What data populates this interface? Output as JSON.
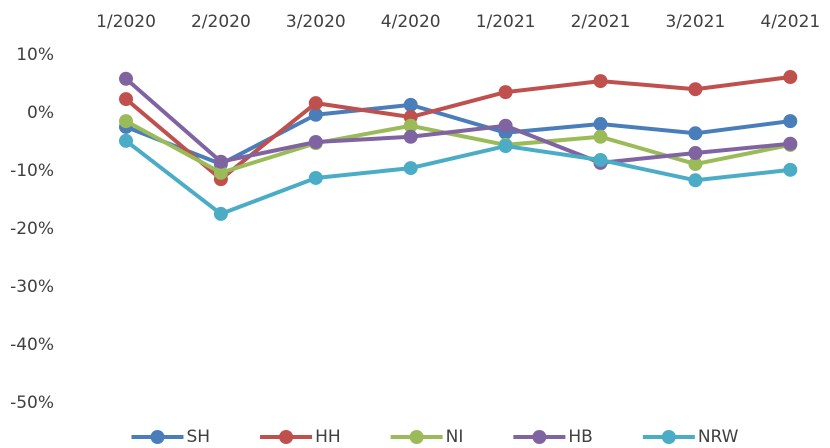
{
  "chart_data": {
    "type": "line",
    "categories": [
      "1/2020",
      "2/2020",
      "3/2020",
      "4/2020",
      "1/2021",
      "2/2021",
      "3/2021",
      "4/2021"
    ],
    "series": [
      {
        "name": "SH",
        "color": "#4a7ebb",
        "values": [
          -2.4,
          -8.8,
          -0.3,
          1.4,
          -3.4,
          -1.9,
          -3.5,
          -1.4
        ]
      },
      {
        "name": "HH",
        "color": "#c0504d",
        "values": [
          2.4,
          -11.4,
          1.7,
          -0.7,
          3.6,
          5.5,
          4.1,
          6.2
        ]
      },
      {
        "name": "NI",
        "color": "#9bbb59",
        "values": [
          -1.4,
          -10.3,
          -5.2,
          -2.2,
          -5.5,
          -4.1,
          -8.8,
          -5.5
        ]
      },
      {
        "name": "HB",
        "color": "#8064a2",
        "values": [
          5.9,
          -8.4,
          -5.0,
          -4.1,
          -2.2,
          -8.6,
          -6.9,
          -5.3
        ]
      },
      {
        "name": "NRW",
        "color": "#4bacc6",
        "values": [
          -4.8,
          -17.4,
          -11.2,
          -9.5,
          -5.7,
          -8.1,
          -11.6,
          -9.8
        ]
      }
    ],
    "ylim": [
      -50,
      10
    ],
    "yticks": [
      {
        "value": 10,
        "label": "10%"
      },
      {
        "value": 0,
        "label": "0%"
      },
      {
        "value": -10,
        "label": "-10%"
      },
      {
        "value": -20,
        "label": "-20%"
      },
      {
        "value": -30,
        "label": "-30%"
      },
      {
        "value": -40,
        "label": "-40%"
      },
      {
        "value": -50,
        "label": "-50%"
      }
    ],
    "grid": false,
    "legend": "bottom"
  }
}
